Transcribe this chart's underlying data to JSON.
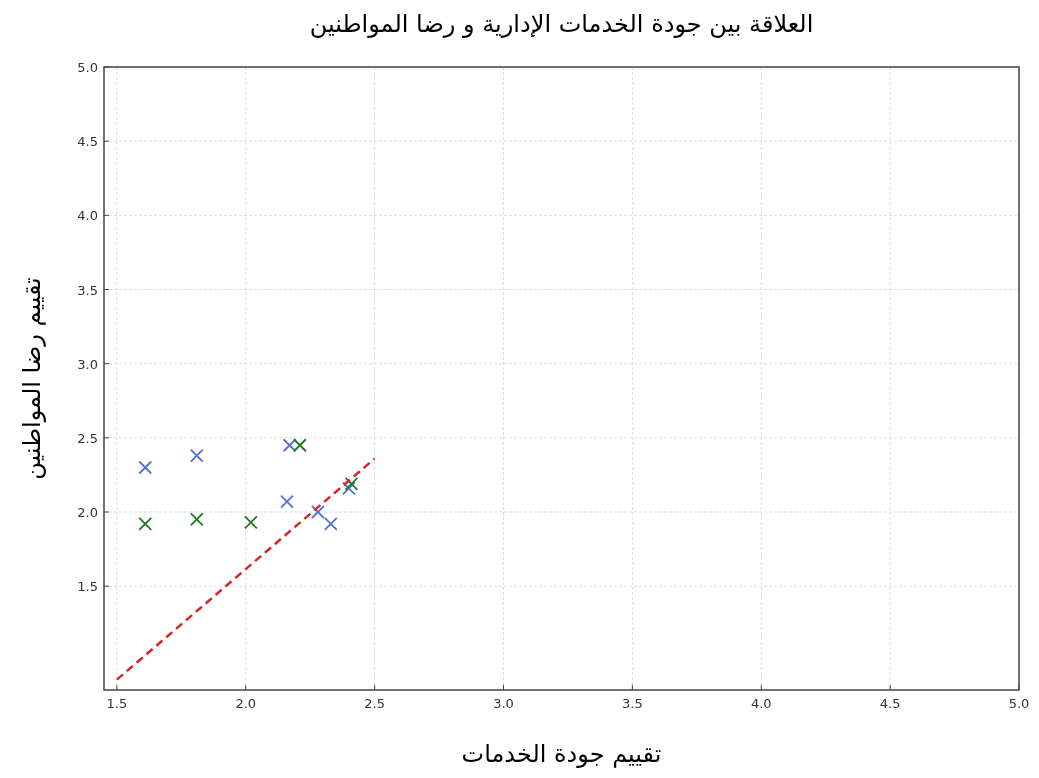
{
  "chart_data": {
    "type": "scatter",
    "title": "العلاقة بين جودة الخدمات الإدارية و رضا المواطنين",
    "xlabel": "تقييم جودة الخدمات",
    "ylabel": "تقييم رضا المواطنين",
    "xlim": [
      1.45,
      5.0
    ],
    "ylim": [
      0.8,
      5.0
    ],
    "xticks": [
      1.5,
      {
        "value": 2,
        "label": "2.0"
      },
      2.5,
      {
        "value": 3,
        "label": "3.0"
      },
      3.5,
      {
        "value": 4,
        "label": "4.0"
      },
      4.5,
      {
        "value": 5,
        "label": "5.0"
      }
    ],
    "yticks": [
      1.5,
      {
        "value": 2,
        "label": "2.0"
      },
      2.5,
      {
        "value": 3,
        "label": "3.0"
      },
      3.5,
      {
        "value": 4,
        "label": "4.0"
      },
      4.5,
      {
        "value": 5,
        "label": "5.0"
      }
    ],
    "grid": true,
    "marker": "cross",
    "series": [
      {
        "color": "#5470d0",
        "x": [
          1.61,
          1.81,
          2.17,
          2.16,
          2.28,
          2.33,
          2.4
        ],
        "values": [
          2.3,
          2.38,
          2.45,
          2.07,
          2.0,
          1.92,
          2.16
        ]
      },
      {
        "color": "#1f7a1f",
        "x": [
          1.61,
          1.81,
          2.02,
          2.21,
          2.41
        ],
        "values": [
          1.92,
          1.95,
          1.93,
          2.45,
          2.19
        ]
      },
      {
        "type": "line",
        "line_style": "dashed",
        "marker": "none",
        "color": "#d62728",
        "x": [
          1.5,
          2.5
        ],
        "values": [
          0.87,
          2.36
        ]
      }
    ]
  }
}
